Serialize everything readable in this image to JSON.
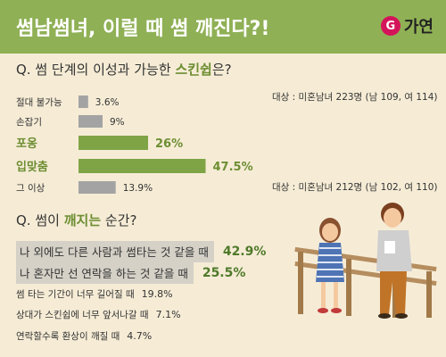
{
  "header": {
    "title": "썸남썸녀, 이럴 때 썸 깨진다?!",
    "logo_mark": "G",
    "logo_text": "가연"
  },
  "q1": {
    "prefix": "Q. 썸 단계의 이성과 가능한 ",
    "highlight": "스킨쉽",
    "suffix": "은?"
  },
  "notes": {
    "top": "대상 : 미혼남녀 223명 (남 109, 여 114)",
    "bottom": "대상 : 미혼남녀 212명 (남 102, 여 110)"
  },
  "chart_data": {
    "type": "bar",
    "orientation": "horizontal",
    "categories": [
      "절대 불가능",
      "손잡기",
      "포옹",
      "입맞춤",
      "그 이상"
    ],
    "values": [
      3.6,
      9,
      26,
      47.5,
      13.9
    ],
    "value_labels": [
      "3.6%",
      "9%",
      "26%",
      "47.5%",
      "13.9%"
    ],
    "highlighted": [
      false,
      false,
      true,
      true,
      false
    ],
    "colors": {
      "normal": "#a3a3a3",
      "highlight": "#7fa446",
      "highlight_text": "#6d8e32"
    },
    "xlim": [
      0,
      50
    ]
  },
  "q2": {
    "prefix": "Q. 썸이 ",
    "highlight": "깨지는",
    "suffix": " 순간?",
    "items": [
      {
        "label": "나 외에도 다른 사람과 썸타는 것 같을 때",
        "pct": "42.9%"
      },
      {
        "label": "나 혼자만 선 연락을 하는 것 같을 때",
        "pct": "25.5%"
      },
      {
        "label": "썸 타는 기간이 너무 길어질 때",
        "pct": "19.8%"
      },
      {
        "label": "상대가 스킨쉽에 너무 앞서나갈 때",
        "pct": "7.1%"
      },
      {
        "label": "연락할수록 환상이 깨질 때",
        "pct": "4.7%"
      }
    ]
  }
}
